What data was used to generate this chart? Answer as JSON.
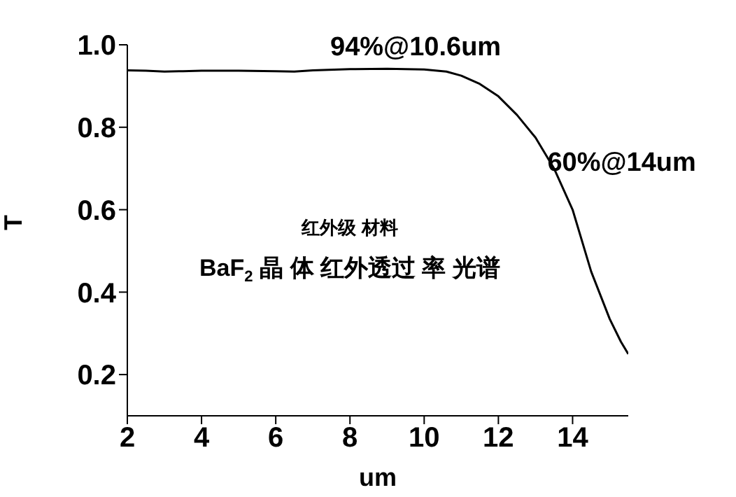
{
  "chart_data": {
    "type": "line",
    "xlabel": "um",
    "ylabel": "T",
    "x": [
      2,
      2.5,
      3,
      3.5,
      4,
      5,
      6,
      6.5,
      7,
      8,
      9,
      10,
      10.6,
      11,
      11.5,
      12,
      12.5,
      13,
      13.5,
      14,
      14.5,
      15,
      15.3,
      15.5
    ],
    "series": [
      {
        "color": "#000000",
        "values": [
          0.938,
          0.937,
          0.935,
          0.936,
          0.937,
          0.937,
          0.936,
          0.935,
          0.938,
          0.941,
          0.942,
          0.94,
          0.935,
          0.925,
          0.905,
          0.875,
          0.83,
          0.775,
          0.7,
          0.6,
          0.45,
          0.335,
          0.28,
          0.25
        ]
      }
    ],
    "xlim": [
      2,
      15.5
    ],
    "xticks": [
      2,
      4,
      6,
      8,
      10,
      12,
      14
    ],
    "ylim": [
      0.1,
      1.0
    ],
    "yticks": [
      {
        "value": 0.2,
        "label": "0.2"
      },
      {
        "value": 0.4,
        "label": "0.4"
      },
      {
        "value": 0.6,
        "label": "0.6"
      },
      {
        "value": 0.8,
        "label": "0.8"
      },
      {
        "value": 1.0,
        "label": "1.0"
      }
    ],
    "grid": false,
    "legend": false,
    "marker": "none",
    "line_style": "solid",
    "annotations": [
      {
        "text": "94%@10.6um",
        "x": 10.6,
        "y": 0.94
      },
      {
        "text": "60%@14um",
        "x": 14,
        "y": 0.6
      },
      "红外级 材料",
      "BaF$_{2}$晶 体 红外透过 率 光谱"
    ]
  }
}
